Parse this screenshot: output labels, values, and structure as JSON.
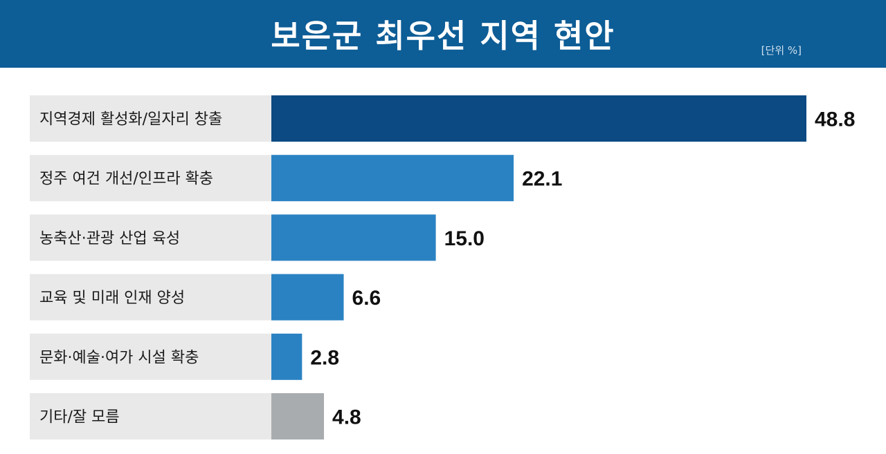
{
  "title": "보은군 최우선 지역 현안",
  "unit": "[단위 %]",
  "colors": {
    "header": "#0d5d96",
    "highlight_bar": "#0b4a82",
    "bar": "#2a82c2",
    "other_bar": "#a9acaf",
    "label_bg": "#e9e9e9"
  },
  "chart_data": {
    "type": "bar",
    "orientation": "horizontal",
    "title": "보은군 최우선 지역 현안",
    "unit": "[단위 %]",
    "categories": [
      "지역경제 활성화/일자리 창출",
      "정주 여건 개선/인프라 확충",
      "농축산·관광 산업 육성",
      "교육 및 미래 인재 양성",
      "문화·예술·여가 시설 확충",
      "기타/잘 모름"
    ],
    "values": [
      48.8,
      22.1,
      15.0,
      6.6,
      2.8,
      4.8
    ],
    "value_labels": [
      "48.8",
      "22.1",
      "15.0",
      "6.6",
      "2.8",
      "4.8"
    ],
    "xlim": [
      0,
      50
    ],
    "grid": false,
    "legend": "none"
  }
}
